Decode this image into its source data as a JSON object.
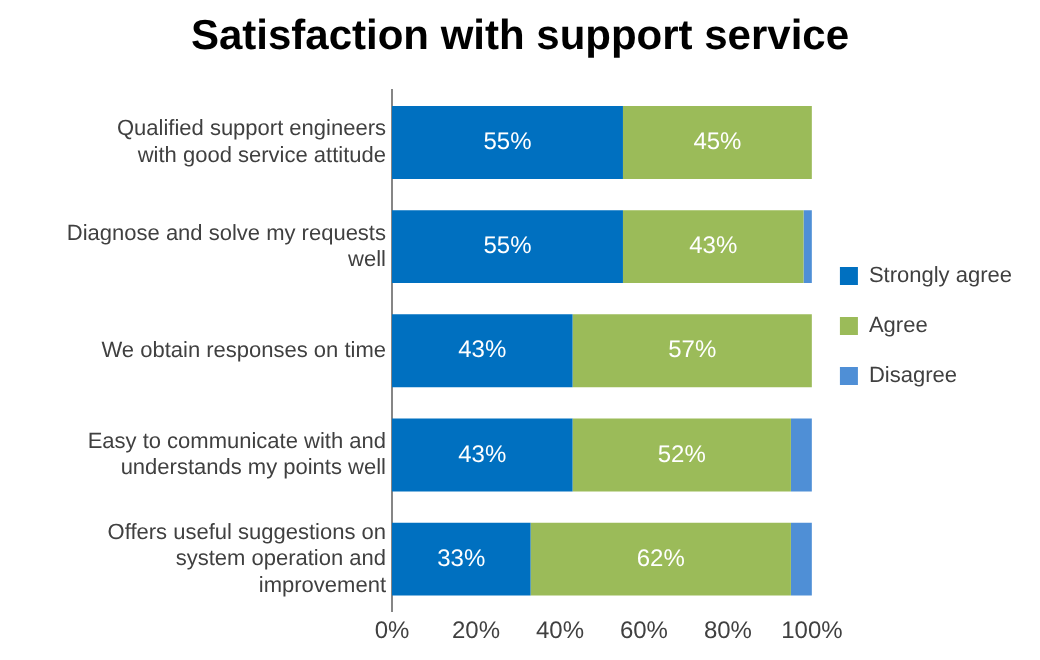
{
  "chart_data": {
    "type": "bar",
    "orientation": "horizontal",
    "stacked": true,
    "title": "Satisfaction with support service",
    "categories": [
      "Qualified support engineers with good service attitude",
      "Diagnose and solve my requests well",
      "We obtain responses on time",
      "Easy to communicate with and understands my points well",
      "Offers useful suggestions on system operation and improvement"
    ],
    "series": [
      {
        "name": "Strongly agree",
        "color": "#0070c0",
        "values": [
          55,
          55,
          43,
          43,
          33
        ],
        "value_labels": [
          "55%",
          "55%",
          "43%",
          "43%",
          "33%"
        ]
      },
      {
        "name": "Agree",
        "color": "#9bbb59",
        "values": [
          45,
          43,
          57,
          52,
          62
        ],
        "value_labels": [
          "45%",
          "43%",
          "57%",
          "52%",
          "62%"
        ]
      },
      {
        "name": "Disagree",
        "color": "#4f8fd6",
        "values": [
          0,
          2,
          0,
          5,
          5
        ],
        "value_labels": [
          null,
          null,
          null,
          null,
          null
        ]
      }
    ],
    "xlim": [
      0,
      100
    ],
    "xticks": [
      {
        "value": 0,
        "label": "0%"
      },
      {
        "value": 20,
        "label": "20%"
      },
      {
        "value": 40,
        "label": "40%"
      },
      {
        "value": 60,
        "label": "60%"
      },
      {
        "value": 80,
        "label": "80%"
      },
      {
        "value": 100,
        "label": "100%"
      }
    ],
    "grid": false,
    "legend": "right"
  }
}
